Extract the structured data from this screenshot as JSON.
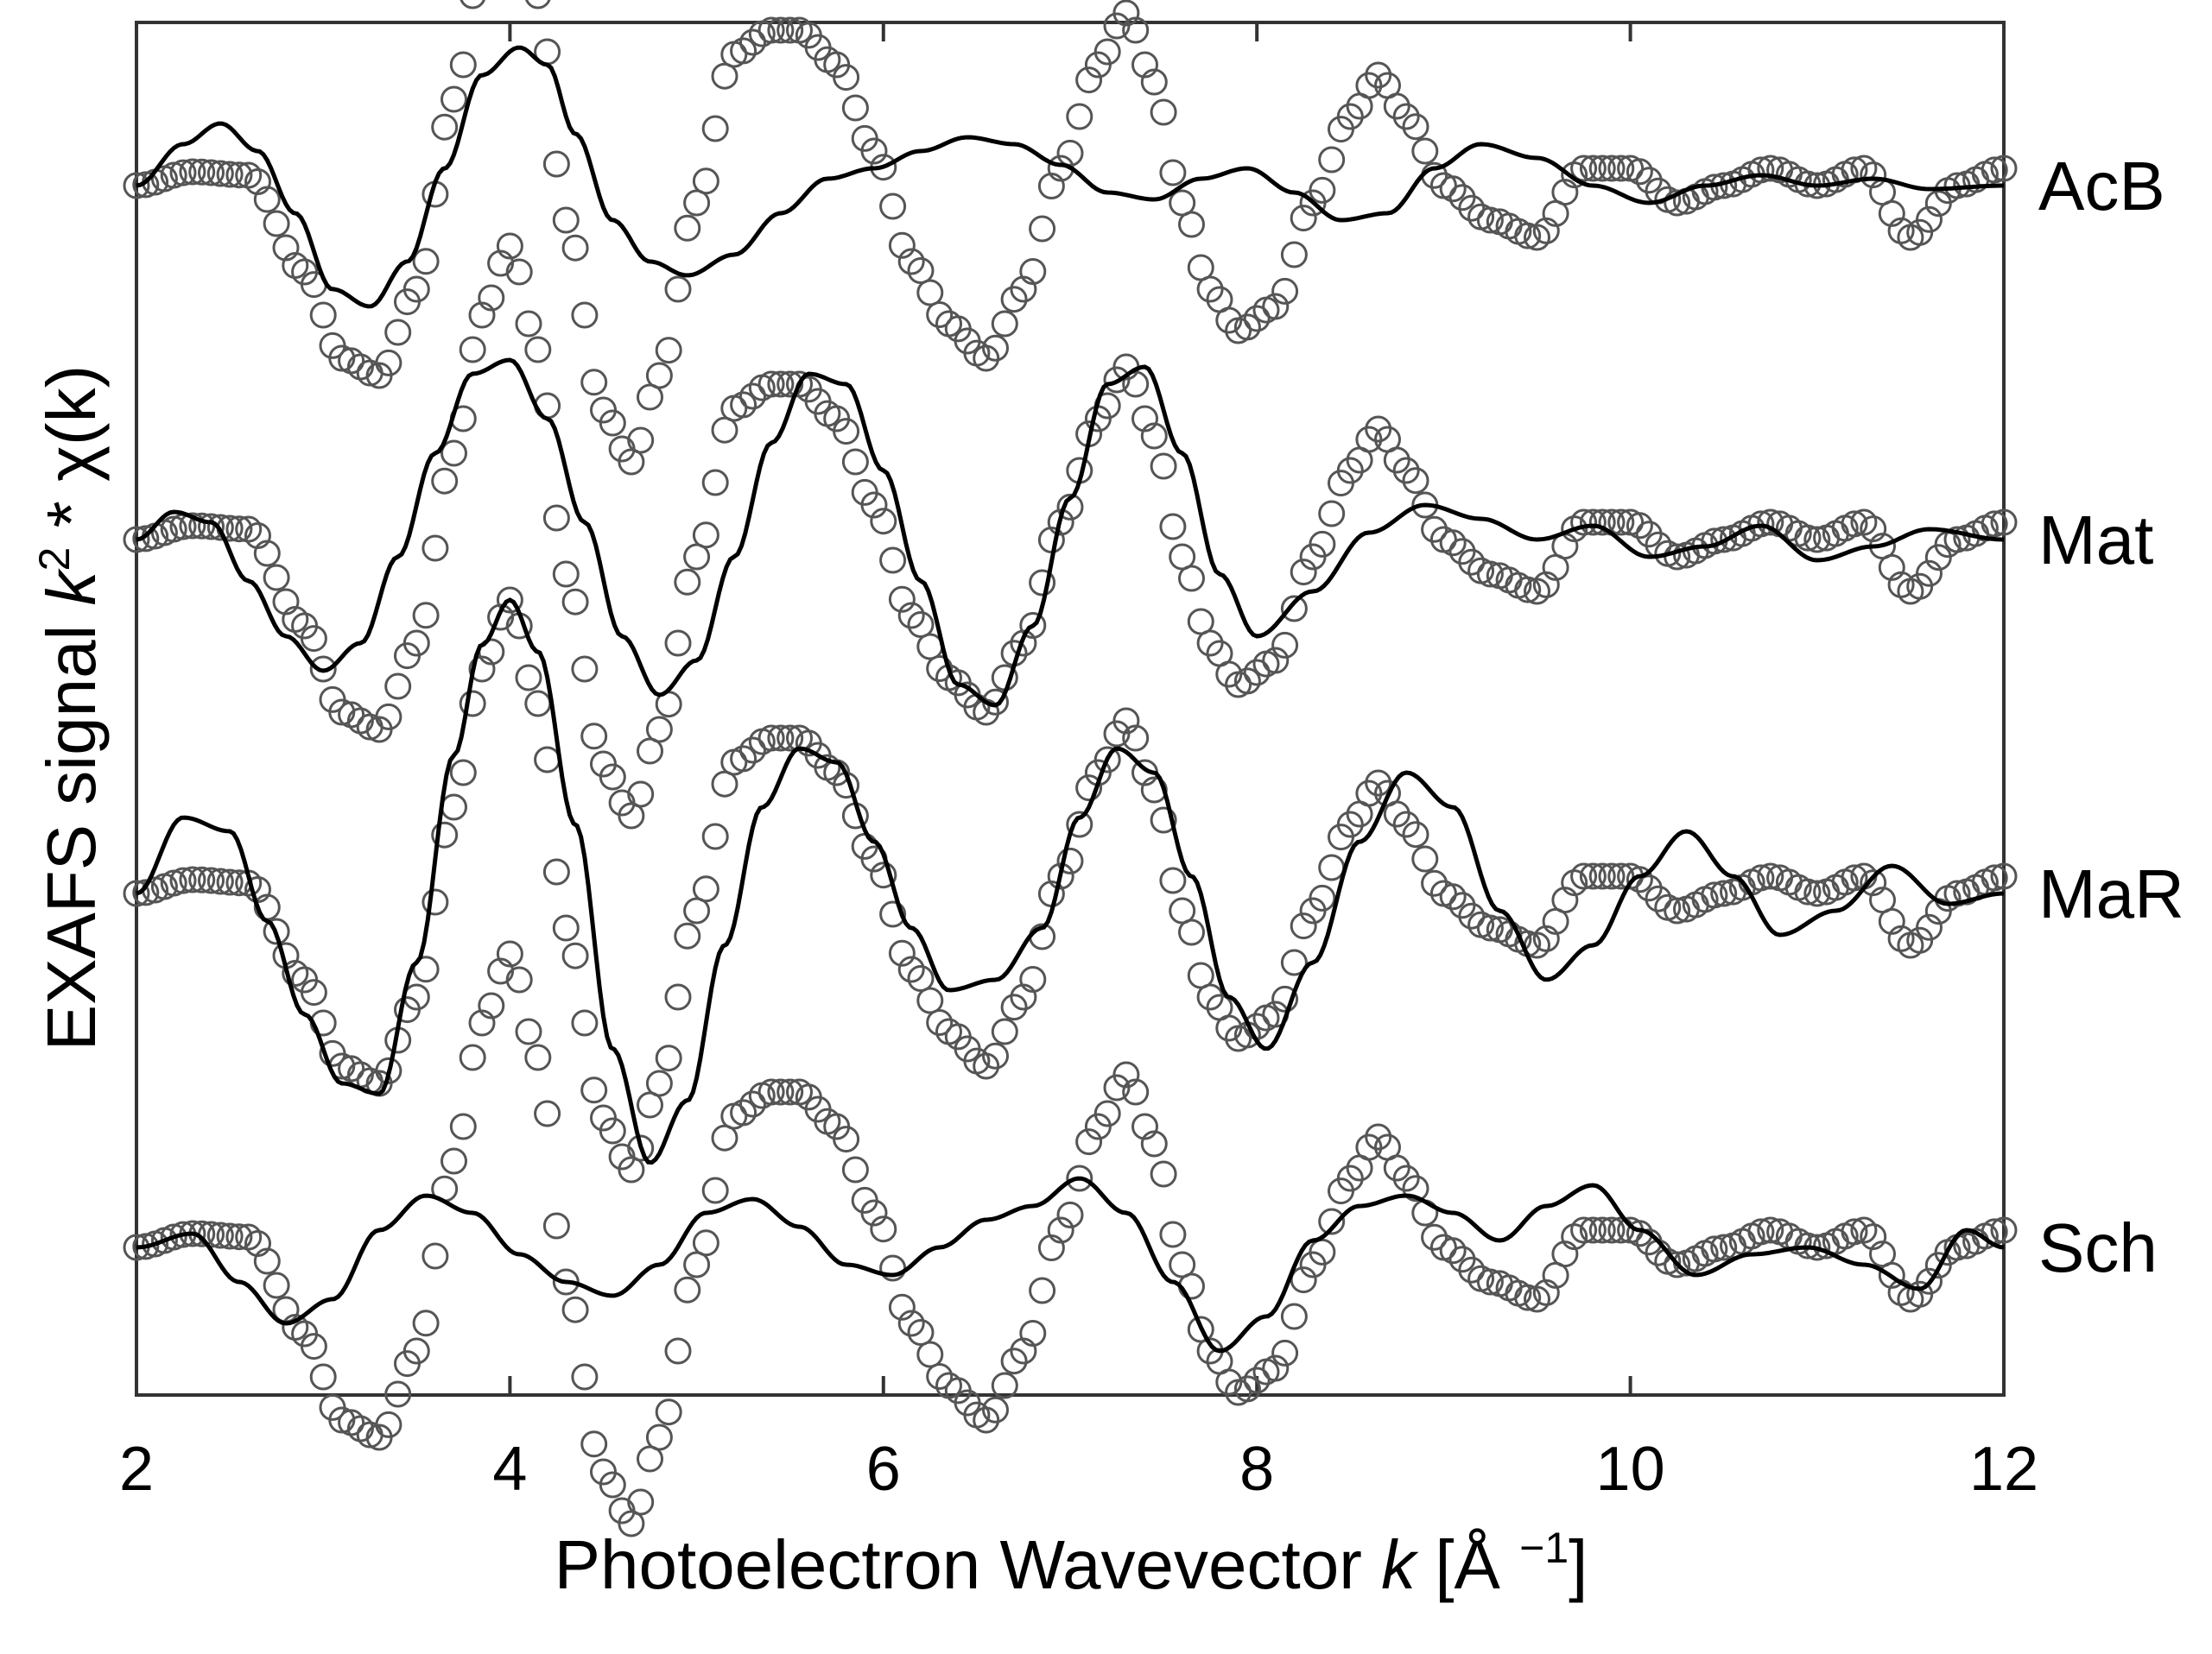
{
  "chart_data": {
    "type": "line",
    "xlabel": {
      "pre": "Photoelectron Wavevector ",
      "var": "k",
      "unit_pre": " [Å ",
      "unit_sup": "−1",
      "unit_post": "]"
    },
    "ylabel": {
      "pre": "EXAFS signal ",
      "var": "k",
      "sup": "2",
      "post": " * χ(k)"
    },
    "xlim": [
      2,
      12
    ],
    "xticks": [
      2,
      4,
      6,
      8,
      10,
      12
    ],
    "xtick_labels": [
      "2",
      "4",
      "6",
      "8",
      "10",
      "12"
    ],
    "grid": false,
    "marker_style": "open-circle",
    "experimental_data": {
      "marker": "open-circle",
      "x": [
        2.0,
        2.3,
        2.6,
        2.9,
        3.1,
        3.3,
        3.5,
        3.7,
        3.85,
        4.0,
        4.15,
        4.3,
        4.5,
        4.65,
        4.8,
        5.0,
        5.2,
        5.4,
        5.55,
        5.75,
        5.95,
        6.15,
        6.35,
        6.55,
        6.75,
        6.95,
        7.15,
        7.3,
        7.45,
        7.6,
        7.75,
        7.9,
        8.1,
        8.3,
        8.5,
        8.65,
        8.8,
        9.0,
        9.25,
        9.5,
        9.75,
        10.0,
        10.25,
        10.5,
        10.75,
        11.0,
        11.25,
        11.5,
        11.75,
        12.0
      ],
      "y": [
        0.0,
        0.04,
        0.03,
        -0.25,
        -0.5,
        -0.55,
        -0.3,
        0.25,
        0.65,
        0.85,
        0.55,
        -0.1,
        -0.65,
        -0.8,
        -0.55,
        -0.05,
        0.38,
        0.45,
        0.45,
        0.35,
        0.1,
        -0.22,
        -0.4,
        -0.5,
        -0.3,
        0.05,
        0.35,
        0.5,
        0.3,
        -0.05,
        -0.3,
        -0.42,
        -0.35,
        -0.05,
        0.2,
        0.32,
        0.2,
        0.0,
        -0.1,
        -0.15,
        0.05,
        0.05,
        -0.05,
        0.0,
        0.05,
        0.0,
        0.05,
        -0.15,
        0.0,
        0.05
      ]
    },
    "series": [
      {
        "name": "AcB",
        "fit": {
          "x": [
            2.0,
            2.25,
            2.45,
            2.65,
            2.85,
            3.05,
            3.25,
            3.45,
            3.65,
            3.85,
            4.05,
            4.2,
            4.35,
            4.55,
            4.75,
            4.95,
            5.2,
            5.45,
            5.7,
            5.95,
            6.2,
            6.45,
            6.7,
            6.95,
            7.2,
            7.45,
            7.7,
            7.95,
            8.2,
            8.45,
            8.7,
            8.95,
            9.2,
            9.5,
            9.8,
            10.1,
            10.4,
            10.7,
            11.0,
            11.3,
            11.6,
            12.0
          ],
          "y": [
            0.0,
            0.12,
            0.18,
            0.1,
            -0.08,
            -0.3,
            -0.35,
            -0.22,
            0.05,
            0.32,
            0.4,
            0.35,
            0.15,
            -0.1,
            -0.22,
            -0.26,
            -0.2,
            -0.08,
            0.02,
            0.05,
            0.1,
            0.14,
            0.12,
            0.06,
            -0.02,
            -0.04,
            0.02,
            0.05,
            -0.02,
            -0.1,
            -0.08,
            0.05,
            0.12,
            0.08,
            0.0,
            -0.05,
            0.0,
            0.03,
            0.0,
            0.02,
            -0.01,
            0.0
          ]
        }
      },
      {
        "name": "Mat",
        "fit": {
          "x": [
            2.0,
            2.2,
            2.4,
            2.6,
            2.8,
            3.0,
            3.2,
            3.4,
            3.6,
            3.8,
            4.0,
            4.2,
            4.4,
            4.6,
            4.8,
            5.0,
            5.2,
            5.4,
            5.6,
            5.8,
            6.0,
            6.2,
            6.4,
            6.6,
            6.8,
            7.0,
            7.2,
            7.4,
            7.6,
            7.8,
            8.0,
            8.3,
            8.6,
            8.9,
            9.2,
            9.5,
            9.8,
            10.1,
            10.4,
            10.7,
            11.0,
            11.3,
            11.6,
            12.0
          ],
          "y": [
            0.0,
            0.08,
            0.05,
            -0.12,
            -0.28,
            -0.38,
            -0.3,
            -0.05,
            0.25,
            0.48,
            0.52,
            0.35,
            0.05,
            -0.28,
            -0.45,
            -0.35,
            -0.05,
            0.28,
            0.48,
            0.45,
            0.2,
            -0.12,
            -0.42,
            -0.48,
            -0.25,
            0.12,
            0.45,
            0.5,
            0.25,
            -0.1,
            -0.28,
            -0.15,
            0.02,
            0.1,
            0.06,
            0.0,
            0.04,
            -0.05,
            -0.02,
            0.04,
            -0.06,
            -0.02,
            0.03,
            0.0
          ]
        }
      },
      {
        "name": "MaR",
        "fit": {
          "x": [
            2.0,
            2.25,
            2.5,
            2.7,
            2.9,
            3.1,
            3.3,
            3.5,
            3.7,
            3.85,
            4.0,
            4.15,
            4.35,
            4.55,
            4.75,
            4.95,
            5.15,
            5.35,
            5.55,
            5.75,
            5.95,
            6.15,
            6.35,
            6.6,
            6.85,
            7.05,
            7.25,
            7.45,
            7.65,
            7.85,
            8.05,
            8.3,
            8.55,
            8.8,
            9.05,
            9.3,
            9.55,
            9.8,
            10.05,
            10.3,
            10.55,
            10.8,
            11.1,
            11.4,
            11.7,
            12.0
          ],
          "y": [
            0.0,
            0.22,
            0.18,
            -0.08,
            -0.35,
            -0.55,
            -0.58,
            -0.2,
            0.4,
            0.72,
            0.85,
            0.7,
            0.2,
            -0.45,
            -0.78,
            -0.6,
            -0.15,
            0.25,
            0.42,
            0.38,
            0.15,
            -0.1,
            -0.28,
            -0.25,
            -0.1,
            0.22,
            0.42,
            0.35,
            0.05,
            -0.3,
            -0.45,
            -0.2,
            0.15,
            0.35,
            0.25,
            -0.05,
            -0.25,
            -0.15,
            0.05,
            0.18,
            0.05,
            -0.12,
            -0.05,
            0.08,
            -0.03,
            0.0
          ]
        }
      },
      {
        "name": "Sch",
        "fit": {
          "x": [
            2.0,
            2.3,
            2.55,
            2.8,
            3.05,
            3.3,
            3.55,
            3.8,
            4.05,
            4.3,
            4.55,
            4.8,
            5.05,
            5.3,
            5.55,
            5.8,
            6.05,
            6.3,
            6.55,
            6.8,
            7.05,
            7.3,
            7.55,
            7.8,
            8.05,
            8.3,
            8.55,
            8.8,
            9.05,
            9.3,
            9.55,
            9.8,
            10.05,
            10.35,
            10.65,
            10.95,
            11.25,
            11.55,
            11.8,
            12.0
          ],
          "y": [
            0.0,
            0.04,
            -0.1,
            -0.22,
            -0.15,
            0.05,
            0.15,
            0.1,
            -0.02,
            -0.1,
            -0.14,
            -0.05,
            0.1,
            0.14,
            0.06,
            -0.05,
            -0.08,
            0.0,
            0.08,
            0.12,
            0.2,
            0.1,
            -0.1,
            -0.3,
            -0.2,
            0.02,
            0.12,
            0.15,
            0.1,
            0.02,
            0.12,
            0.18,
            0.05,
            -0.08,
            -0.02,
            0.0,
            -0.05,
            -0.12,
            0.05,
            0.0
          ]
        }
      }
    ]
  }
}
